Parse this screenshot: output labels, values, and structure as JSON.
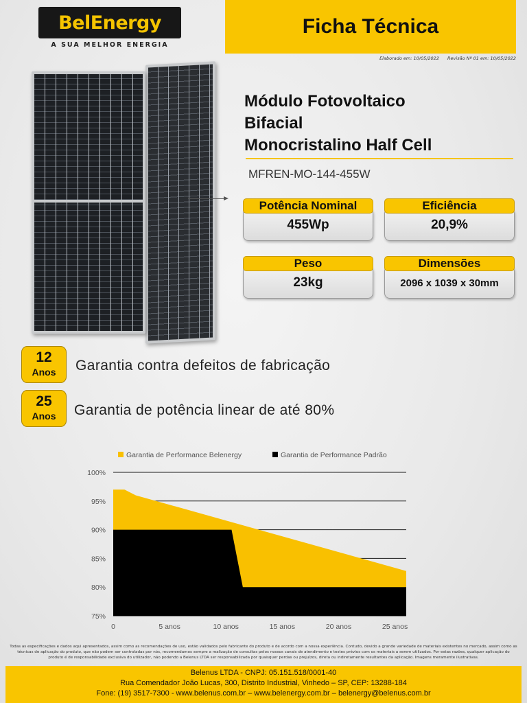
{
  "brand": {
    "logo_text": "BelEnergy",
    "tagline": "A SUA MELHOR ENERGIA"
  },
  "header": {
    "title": "Ficha Técnica",
    "elaborated": "Elaborado em: 10/05/2022",
    "revision": "Revisão Nº 01 em: 10/05/2022"
  },
  "product": {
    "title_lines": [
      "Módulo Fotovoltaico",
      "Bifacial",
      "Monocristalino Half Cell"
    ],
    "model": "MFREN-MO-144-455W"
  },
  "specs": [
    {
      "label": "Potência Nominal",
      "value": "455Wp"
    },
    {
      "label": "Eficiência",
      "value": "20,9%"
    },
    {
      "label": "Peso",
      "value": "23kg"
    },
    {
      "label": "Dimensões",
      "value": "2096 x 1039 x 30mm"
    }
  ],
  "warranties": [
    {
      "years": "12",
      "unit": "Anos",
      "text": "Garantia contra defeitos de fabricação"
    },
    {
      "years": "25",
      "unit": "Anos",
      "text": "Garantia de potência linear de até 80%"
    }
  ],
  "chart_data": {
    "type": "area",
    "title": "",
    "xlabel": "",
    "ylabel": "",
    "xlim": [
      0,
      26
    ],
    "ylim": [
      75,
      100
    ],
    "x_ticks": [
      0,
      5,
      10,
      15,
      20,
      25
    ],
    "x_tick_labels": [
      "0",
      "5 anos",
      "10 anos",
      "15 anos",
      "20 anos",
      "25 anos"
    ],
    "y_ticks": [
      75,
      80,
      85,
      90,
      95,
      100
    ],
    "y_tick_labels": [
      "75%",
      "80%",
      "85%",
      "90%",
      "95%",
      "100%"
    ],
    "grid": true,
    "legend_position": "top",
    "colors": {
      "belenergy": "#F9C000",
      "padrao": "#000000",
      "grid": "#1a1a1a",
      "axis_text": "#555555"
    },
    "series": [
      {
        "name": "Garantia de Performance Belenergy",
        "x": [
          0,
          1,
          2,
          26
        ],
        "values": [
          97,
          97,
          96,
          82.8
        ]
      },
      {
        "name": "Garantia de Performance Padrão",
        "x": [
          0,
          10.5,
          11.5,
          26
        ],
        "values": [
          90,
          90,
          80,
          80
        ]
      }
    ]
  },
  "footer": {
    "disclaimer": "Todas as especificações e dados aqui apresentados, assim como as recomendações de uso, estão validados pelo fabricante do produto e de acordo com a nossa experiência. Contudo, devido a grande variedade de materiais existentes no mercado, assim como as técnicas de aplicação do produto, que não podem ser controladas por nós, recomendamos sempre a realização de consultas pelos nossos canais de atendimento e testes prévios com os materiais a serem utilizados. Por estas razões, qualquer aplicação do produto é de responsabilidade exclusiva do utilizador, não podendo a Belenus LTDA ser responsabilizada por quaisquer perdas ou prejuízos, direta ou indiretamente resultantes da aplicação. Imagens meramente ilustrativas.",
    "company": "Belenus LTDA - CNPJ: 05.151.518/0001-40",
    "address": "Rua Comendador João Lucas, 300, Distrito Industrial, Vinhedo – SP, CEP: 13288-184",
    "contact": "Fone: (19) 3517-7300 - www.belenus.com.br – www.belenergy.com.br – belenergy@belenus.com.br"
  }
}
